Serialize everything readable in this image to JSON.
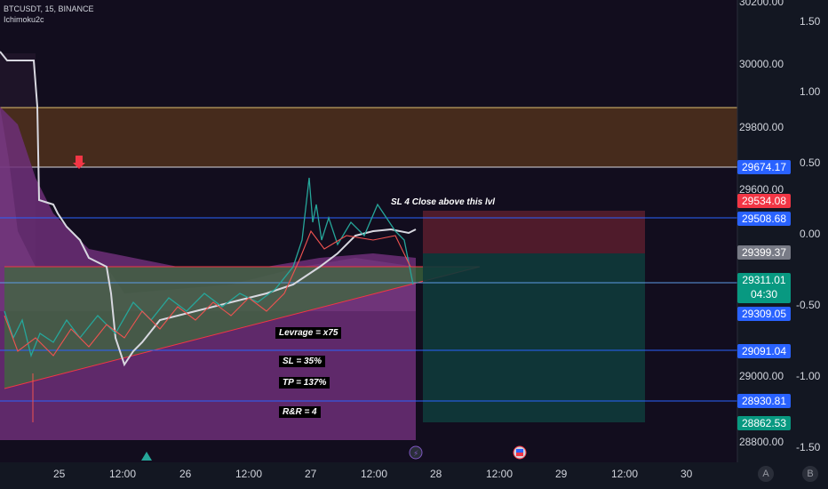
{
  "header": {
    "symbol_line": "BTCUSDT, 15, BINANCE",
    "indicator": "Ichimoku2c"
  },
  "price_axis": [
    "30200.00",
    "30000.00",
    "29800.00",
    "29600.00",
    "29000.00",
    "28800.00"
  ],
  "osc_axis": [
    "1.50",
    "1.00",
    "0.50",
    "0.00",
    "-0.50",
    "-1.00",
    "-1.50"
  ],
  "price_tags": {
    "t1": "29674.17",
    "t2": "29534.08",
    "t3": "29508.68",
    "t4": "29399.37",
    "t5_price": "29311.01",
    "t5_timer": "04:30",
    "t6": "29309.05",
    "t7": "29091.04",
    "t8": "28930.81",
    "t9": "28862.53"
  },
  "time_axis": [
    "25",
    "12:00",
    "26",
    "12:00",
    "27",
    "12:00",
    "28",
    "12:00",
    "29",
    "12:00",
    "30"
  ],
  "annotations": {
    "sl_note": "SL 4 Close above this lvl",
    "leverage": "Levrage = x75",
    "sl": "SL = 35%",
    "tp": "TP = 137%",
    "rr": "R&R = 4"
  },
  "buttons": {
    "auto": "A",
    "log": "B"
  },
  "icons": [
    "down-arrow-marker-icon",
    "up-triangle-marker-icon",
    "lightning-event-icon",
    "flag-event-icon"
  ],
  "colors": {
    "background": "#131722",
    "resistance_zone": "#5b3a1a",
    "cloud": "#7b3b86",
    "triangle": "#4a7a4a",
    "stop_zone": "#5a1e2e",
    "target_zone": "#0f3a3a",
    "tag_blue": "#2962ff",
    "tag_red": "#f23645",
    "tag_gray": "#787b86",
    "tag_green": "#089981"
  }
}
